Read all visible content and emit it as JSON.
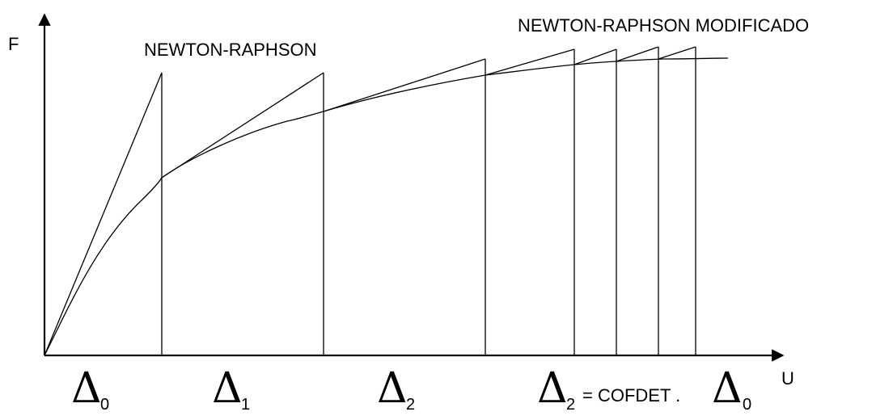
{
  "axes": {
    "y_label": "F",
    "x_label": "U"
  },
  "labels": {
    "newton_raphson": "NEWTON-RAPHSON",
    "newton_raphson_modified": "NEWTON-RAPHSON MODIFICADO"
  },
  "increments": [
    {
      "symbol": "Δ",
      "subscript": "0"
    },
    {
      "symbol": "Δ",
      "subscript": "1"
    },
    {
      "symbol": "Δ",
      "subscript": "2"
    }
  ],
  "formula": {
    "lhs_symbol": "Δ",
    "lhs_subscript": "2",
    "text": "= COFDET .",
    "rhs_symbol": "Δ",
    "rhs_subscript": "0"
  }
}
